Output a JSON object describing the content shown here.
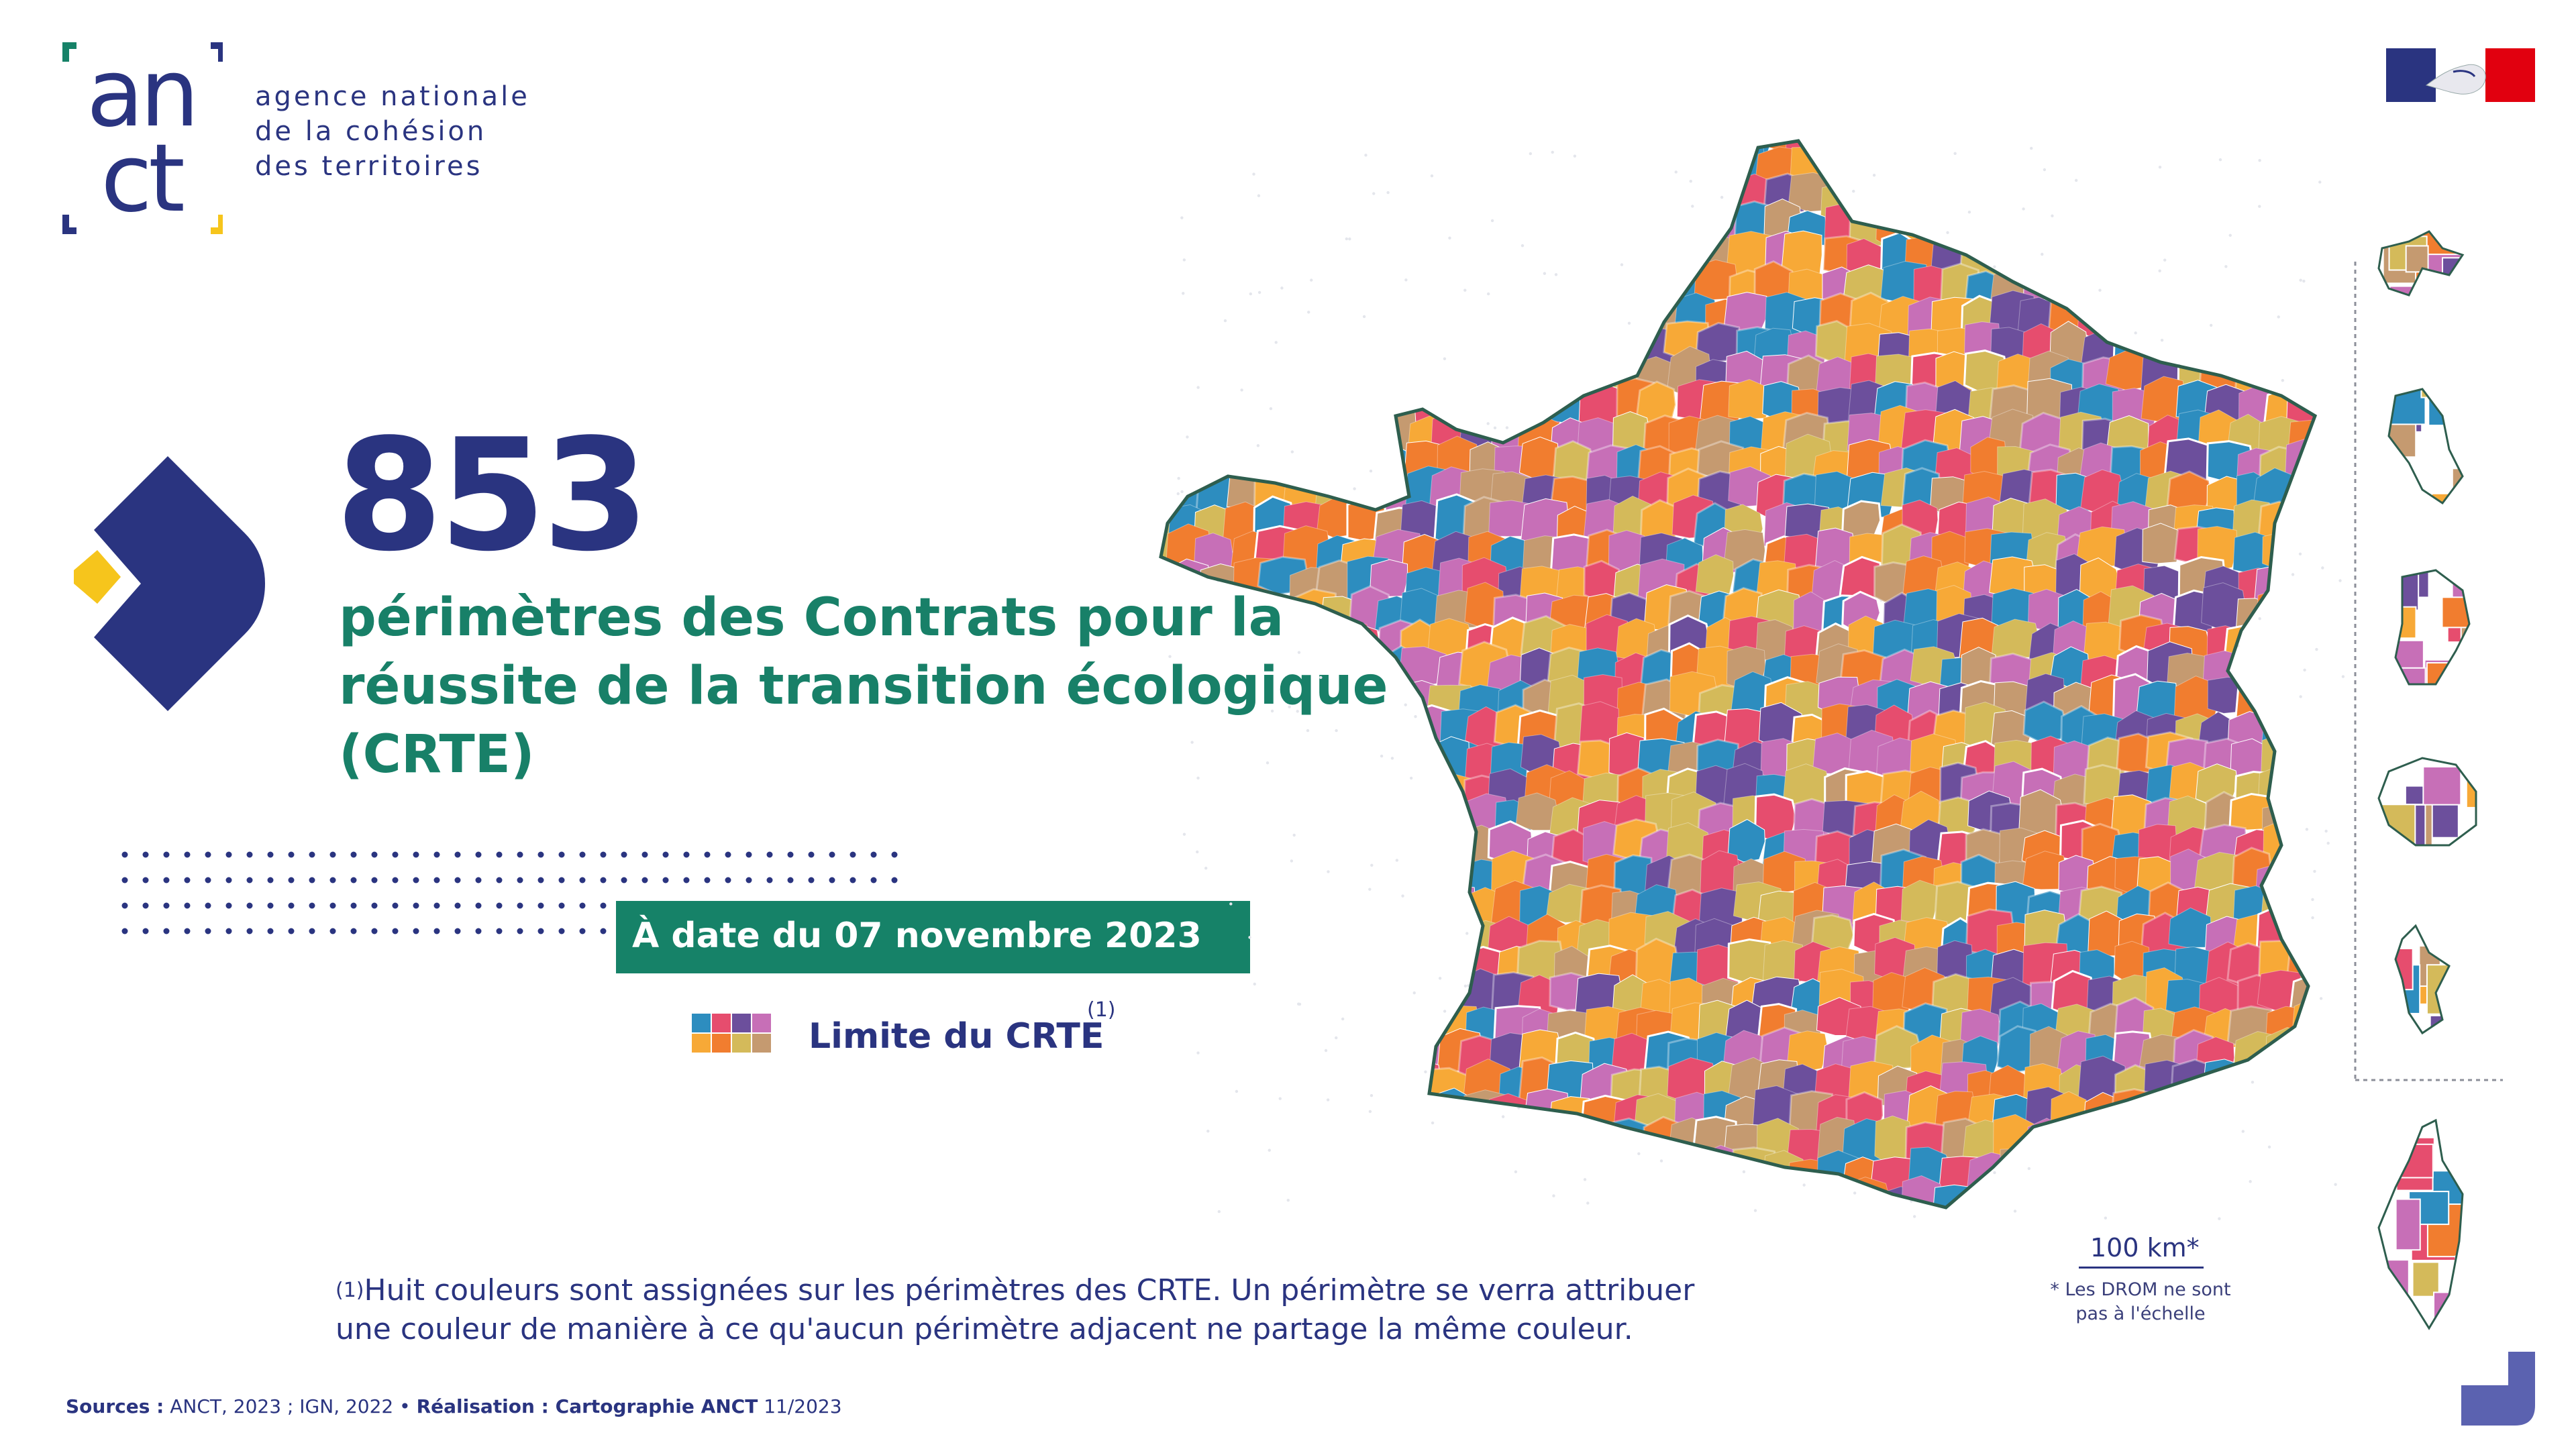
{
  "logo": {
    "letters_top": "an",
    "letters_bottom": "ct",
    "text_lines": [
      "agence nationale",
      "de la cohésion",
      "des territoires"
    ]
  },
  "headline": {
    "number": "853",
    "subtitle_lines": [
      "périmètres des Contrats pour la",
      "réussite de la transition écologique",
      "(CRTE)"
    ]
  },
  "date_banner": "À date du 07 novembre 2023",
  "legend": {
    "label": "Limite du CRTE",
    "note_marker": "(1)",
    "swatch_colors": [
      "#2d8dbf",
      "#e64d6e",
      "#6c4f9c",
      "#c76fb7",
      "#f7a937",
      "#f17d2f",
      "#d4ba5a",
      "#c59a70"
    ]
  },
  "footnote": {
    "marker": "(1)",
    "line1": "Huit couleurs sont assignées sur les périmètres des CRTE. Un périmètre se verra attribuer",
    "line2": "une couleur de manière à ce qu'aucun périmètre adjacent ne partage la même couleur."
  },
  "sources": {
    "sources_label": "Sources :",
    "sources_text": " ANCT, 2023 ; IGN, 2022 • ",
    "realisation_label": "Réalisation :",
    "realisation_text": " Cartographie ANCT",
    "realisation_date": " 11/2023"
  },
  "scale": {
    "label": "100 km*",
    "note_line1": "* Les DROM ne sont",
    "note_line2": "pas à l'échelle"
  },
  "colors": {
    "navy": "#2a3480",
    "green": "#168268",
    "yellow": "#f6c51c",
    "palette": [
      "#2d8dbf",
      "#e64d6e",
      "#6c4f9c",
      "#c76fb7",
      "#f7a937",
      "#f17d2f",
      "#d4ba5a",
      "#c59a70"
    ]
  }
}
